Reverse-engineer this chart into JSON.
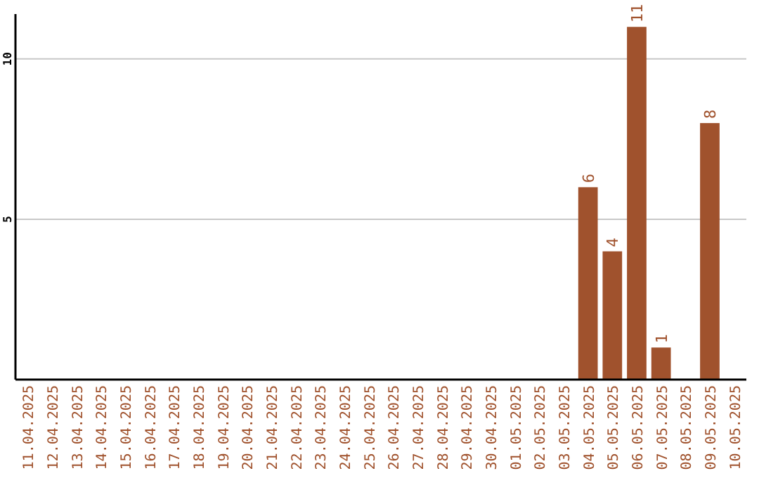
{
  "chart_data": {
    "type": "bar",
    "categories": [
      "11.04.2025",
      "12.04.2025",
      "13.04.2025",
      "14.04.2025",
      "15.04.2025",
      "16.04.2025",
      "17.04.2025",
      "18.04.2025",
      "19.04.2025",
      "20.04.2025",
      "21.04.2025",
      "22.04.2025",
      "23.04.2025",
      "24.04.2025",
      "25.04.2025",
      "26.04.2025",
      "27.04.2025",
      "28.04.2025",
      "29.04.2025",
      "30.04.2025",
      "01.05.2025",
      "02.05.2025",
      "03.05.2025",
      "04.05.2025",
      "05.05.2025",
      "06.05.2025",
      "07.05.2025",
      "08.05.2025",
      "09.05.2025",
      "10.05.2025"
    ],
    "values": [
      0,
      0,
      0,
      0,
      0,
      0,
      0,
      0,
      0,
      0,
      0,
      0,
      0,
      0,
      0,
      0,
      0,
      0,
      0,
      0,
      0,
      0,
      0,
      6,
      4,
      11,
      1,
      0,
      8,
      0
    ],
    "value_labels": [
      null,
      null,
      null,
      null,
      null,
      null,
      null,
      null,
      null,
      null,
      null,
      null,
      null,
      null,
      null,
      null,
      null,
      null,
      null,
      null,
      null,
      null,
      null,
      "6",
      "4",
      "11",
      "1",
      null,
      "8",
      null
    ],
    "color": "#a0522d",
    "ylim": [
      0,
      11.4
    ],
    "yticks": [
      5,
      10
    ],
    "grid": "y"
  }
}
